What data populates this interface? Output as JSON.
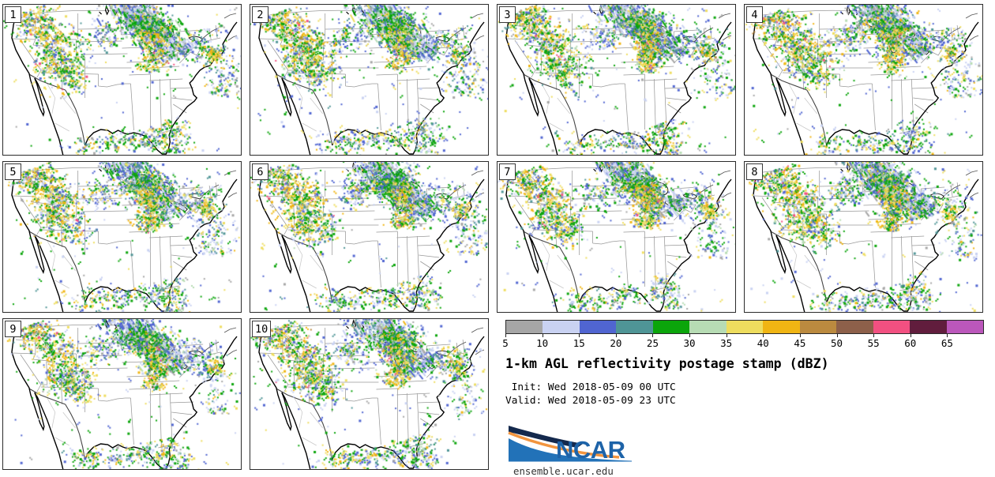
{
  "figure": {
    "title": "1-km AGL reflectivity postage stamp (dBZ)",
    "init_line": " Init: Wed 2018-05-09 00 UTC",
    "valid_line": "Valid: Wed 2018-05-09 23 UTC"
  },
  "panels": [
    {
      "member": "1"
    },
    {
      "member": "2"
    },
    {
      "member": "3"
    },
    {
      "member": "4"
    },
    {
      "member": "5"
    },
    {
      "member": "6"
    },
    {
      "member": "7"
    },
    {
      "member": "8"
    },
    {
      "member": "9"
    },
    {
      "member": "10"
    }
  ],
  "colorbar": {
    "units": "dBZ",
    "ticks": [
      "5",
      "10",
      "15",
      "20",
      "25",
      "30",
      "35",
      "40",
      "45",
      "50",
      "55",
      "60",
      "65"
    ],
    "levels": [
      {
        "dbz": 5,
        "color": "#a6a6a6"
      },
      {
        "dbz": 10,
        "color": "#c9d2f2"
      },
      {
        "dbz": 15,
        "color": "#5065d1"
      },
      {
        "dbz": 20,
        "color": "#4f9596"
      },
      {
        "dbz": 25,
        "color": "#0ba50b"
      },
      {
        "dbz": 30,
        "color": "#b7dcb4"
      },
      {
        "dbz": 35,
        "color": "#eedd5e"
      },
      {
        "dbz": 40,
        "color": "#f0b513"
      },
      {
        "dbz": 45,
        "color": "#bb8a3f"
      },
      {
        "dbz": 50,
        "color": "#8d604a"
      },
      {
        "dbz": 55,
        "color": "#f25081"
      },
      {
        "dbz": 60,
        "color": "#611d3d"
      },
      {
        "dbz": 65,
        "color": "#bb57bb"
      }
    ]
  },
  "branding": {
    "logo_text": "NCAR",
    "site_url": "ensemble.ucar.edu",
    "logo_blue": "#2272b8",
    "logo_navy": "#14294d",
    "logo_orange": "#f2953f",
    "wordmark_color": "#1d63a8"
  },
  "radar_regions": [
    {
      "name": "great-lakes-band",
      "type": "band",
      "p0": [
        0.47,
        -0.08
      ],
      "p1": [
        0.55,
        0.1
      ],
      "p2": [
        0.74,
        0.33
      ],
      "spread": 0.05,
      "count": 950,
      "streaks": 0.22,
      "palette": [
        [
          1,
          30
        ],
        [
          2,
          22
        ],
        [
          0,
          12
        ],
        [
          4,
          16
        ],
        [
          3,
          8
        ],
        [
          5,
          6
        ],
        [
          6,
          4
        ],
        [
          7,
          2
        ]
      ]
    },
    {
      "name": "great-lakes-green-core",
      "type": "gauss",
      "c": [
        0.6,
        0.13
      ],
      "sx": 0.05,
      "sy": 0.04,
      "count": 260,
      "palette": [
        [
          4,
          45
        ],
        [
          3,
          12
        ],
        [
          5,
          12
        ],
        [
          2,
          12
        ],
        [
          6,
          10
        ],
        [
          7,
          6
        ],
        [
          1,
          3
        ]
      ]
    },
    {
      "name": "midwest-convective-line",
      "type": "band",
      "p0": [
        0.6,
        0.17
      ],
      "p1": [
        0.66,
        0.28
      ],
      "p2": [
        0.61,
        0.45
      ],
      "spread": 0.03,
      "count": 300,
      "palette": [
        [
          6,
          26
        ],
        [
          7,
          22
        ],
        [
          4,
          24
        ],
        [
          3,
          8
        ],
        [
          2,
          8
        ],
        [
          5,
          6
        ],
        [
          8,
          4
        ],
        [
          10,
          2
        ]
      ]
    },
    {
      "name": "northern-rockies-cluster",
      "type": "band",
      "p0": [
        0.09,
        0.05
      ],
      "p1": [
        0.15,
        0.15
      ],
      "p2": [
        0.26,
        0.3
      ],
      "spread": 0.055,
      "count": 420,
      "palette": [
        [
          6,
          20
        ],
        [
          7,
          20
        ],
        [
          4,
          24
        ],
        [
          3,
          8
        ],
        [
          2,
          9
        ],
        [
          1,
          8
        ],
        [
          0,
          5
        ],
        [
          8,
          3
        ],
        [
          10,
          2
        ],
        [
          5,
          1
        ]
      ]
    },
    {
      "name": "central-rockies-cluster",
      "type": "gauss",
      "c": [
        0.25,
        0.38
      ],
      "sx": 0.055,
      "sy": 0.065,
      "count": 260,
      "palette": [
        [
          4,
          28
        ],
        [
          6,
          20
        ],
        [
          7,
          16
        ],
        [
          2,
          10
        ],
        [
          3,
          8
        ],
        [
          1,
          8
        ],
        [
          5,
          6
        ],
        [
          10,
          2
        ],
        [
          0,
          2
        ]
      ]
    },
    {
      "name": "colorado-nm-scatter",
      "type": "gauss",
      "c": [
        0.3,
        0.48
      ],
      "sx": 0.035,
      "sy": 0.045,
      "count": 70,
      "palette": [
        [
          4,
          30
        ],
        [
          6,
          25
        ],
        [
          2,
          15
        ],
        [
          3,
          10
        ],
        [
          1,
          10
        ],
        [
          7,
          10
        ]
      ]
    },
    {
      "name": "dakotas-minnesota-scatter",
      "type": "gauss",
      "c": [
        0.43,
        0.2
      ],
      "sx": 0.04,
      "sy": 0.055,
      "count": 110,
      "palette": [
        [
          2,
          22
        ],
        [
          1,
          22
        ],
        [
          4,
          22
        ],
        [
          6,
          12
        ],
        [
          3,
          8
        ],
        [
          7,
          6
        ],
        [
          0,
          8
        ]
      ]
    },
    {
      "name": "gulf-coast-scatter",
      "type": "band",
      "p0": [
        0.43,
        0.94
      ],
      "p1": [
        0.55,
        0.85
      ],
      "p2": [
        0.67,
        0.93
      ],
      "spread": 0.035,
      "count": 130,
      "palette": [
        [
          4,
          30
        ],
        [
          2,
          18
        ],
        [
          1,
          15
        ],
        [
          3,
          10
        ],
        [
          6,
          12
        ],
        [
          0,
          8
        ],
        [
          7,
          7
        ]
      ]
    },
    {
      "name": "florida-scatter",
      "type": "band",
      "p0": [
        0.69,
        0.77
      ],
      "p1": [
        0.75,
        0.88
      ],
      "p2": [
        0.73,
        0.99
      ],
      "spread": 0.04,
      "count": 130,
      "palette": [
        [
          4,
          28
        ],
        [
          2,
          16
        ],
        [
          1,
          14
        ],
        [
          6,
          14
        ],
        [
          3,
          9
        ],
        [
          7,
          8
        ],
        [
          0,
          6
        ],
        [
          5,
          5
        ]
      ]
    },
    {
      "name": "atlantic-offshore-band",
      "type": "band",
      "p0": [
        0.85,
        0.16
      ],
      "p1": [
        0.93,
        0.4
      ],
      "p2": [
        0.91,
        0.62
      ],
      "spread": 0.045,
      "count": 170,
      "palette": [
        [
          1,
          26
        ],
        [
          2,
          18
        ],
        [
          4,
          20
        ],
        [
          6,
          12
        ],
        [
          3,
          8
        ],
        [
          0,
          8
        ],
        [
          5,
          4
        ],
        [
          7,
          4
        ]
      ]
    },
    {
      "name": "northeast-scatter",
      "type": "gauss",
      "c": [
        0.79,
        0.27
      ],
      "sx": 0.06,
      "sy": 0.07,
      "count": 80,
      "palette": [
        [
          2,
          25
        ],
        [
          1,
          20
        ],
        [
          4,
          25
        ],
        [
          3,
          10
        ],
        [
          6,
          10
        ],
        [
          0,
          10
        ]
      ]
    },
    {
      "name": "new-jersey-offshore-cell",
      "type": "gauss",
      "c": [
        0.875,
        0.32
      ],
      "sx": 0.018,
      "sy": 0.028,
      "count": 55,
      "palette": [
        [
          6,
          40
        ],
        [
          7,
          25
        ],
        [
          4,
          20
        ],
        [
          3,
          10
        ],
        [
          8,
          5
        ]
      ]
    },
    {
      "name": "mexico-scatter",
      "type": "gauss",
      "c": [
        0.36,
        0.93
      ],
      "sx": 0.05,
      "sy": 0.045,
      "count": 80,
      "palette": [
        [
          4,
          28
        ],
        [
          6,
          22
        ],
        [
          2,
          14
        ],
        [
          3,
          10
        ],
        [
          7,
          12
        ],
        [
          1,
          10
        ],
        [
          0,
          4
        ]
      ]
    },
    {
      "name": "sparse-noise",
      "type": "uniform",
      "count": 90,
      "palette": [
        [
          2,
          28
        ],
        [
          4,
          28
        ],
        [
          1,
          20
        ],
        [
          0,
          10
        ],
        [
          6,
          10
        ],
        [
          3,
          4
        ]
      ]
    }
  ]
}
